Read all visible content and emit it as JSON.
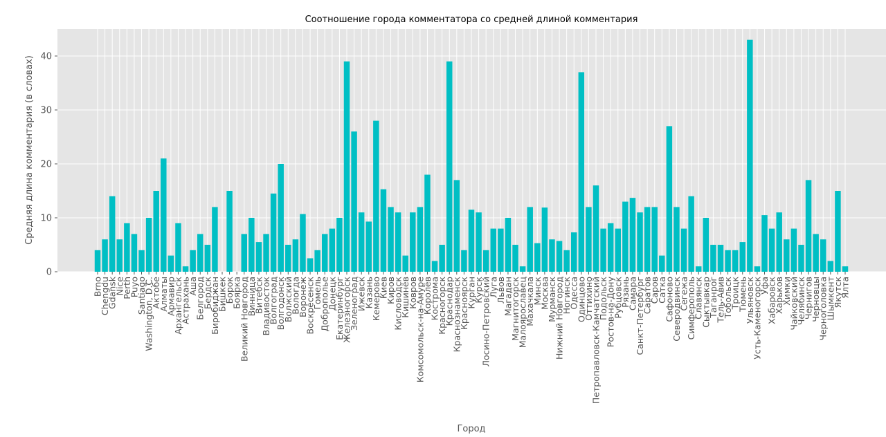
{
  "chart_data": {
    "type": "bar",
    "title": "Соотношение города комментатора со средней длиной комментария",
    "xlabel": "Город",
    "ylabel": "Средняя длина комментария (в словах)",
    "ylim": [
      0,
      45
    ],
    "yticks": [
      0,
      10,
      20,
      30,
      40
    ],
    "grid": true,
    "bar_color": "#00bfc4",
    "background_color": "#e5e5e5",
    "grid_color": "#ffffff",
    "categories": [
      "Brno",
      "Chengdu",
      "Gdansk",
      "Nice",
      "Perth",
      "Puyo",
      "Santiago",
      "Washington, D.C.",
      "Актобе",
      "Алматы",
      "Армавир",
      "Архангельск",
      "Астрахань",
      "Аша",
      "Белгород",
      "Бердск",
      "Биробиджан",
      "Бишкек",
      "Борок",
      "Боярка",
      "Великий Новгород",
      "Винница",
      "Витебск",
      "Владивосток",
      "Волгоград",
      "Волгодонск",
      "Волжский",
      "Вологда",
      "Воронеж",
      "Воскресенск",
      "Гомель",
      "Доброполье",
      "Донецк",
      "Екатеринбург",
      "Железногорск",
      "Зеленоград",
      "Ижевск",
      "Казань",
      "Кемерово",
      "Киев",
      "Киров",
      "Кисловодск",
      "Кишинёв",
      "Ковров",
      "Комсомольск-на-Амуре",
      "Королёв",
      "Кострома",
      "Красногорск",
      "Краснодар",
      "Краснознаменск",
      "Красноярск",
      "Курган",
      "Курск",
      "Лосино-Петровский",
      "Луга",
      "Львов",
      "Магадан",
      "Магнитогорск",
      "Малоярославец",
      "Махачкала",
      "Минск",
      "Москва",
      "Мурманск",
      "Нижний Новгород",
      "Ногинск",
      "Одесса",
      "Одинцово",
      "Оттихино",
      "Петропавловск-Камчатский",
      "Подольск",
      "Ростов-на-Дону",
      "Рубцовск",
      "Рязань",
      "Самара",
      "Санкт-Петербург",
      "Саратов",
      "Саров",
      "Сатка",
      "Сафоново",
      "Северодвинск",
      "Сегежа",
      "Симферополь",
      "Славянск",
      "Сыктывкар",
      "Таганрог",
      "Тель-Авив",
      "Тобольск",
      "Троицк",
      "Тюмень",
      "Ульяновск",
      "Усть-Каменогорск",
      "Уфа",
      "Хабаровск",
      "Харьков",
      "Химки",
      "Чайковский",
      "Челябинск",
      "Чернигов",
      "Черновцы",
      "Черноголовка",
      "Шымкент",
      "Якутск",
      "Ялта"
    ],
    "values": [
      4,
      6,
      14,
      6,
      9,
      7,
      4,
      10,
      15,
      21,
      3,
      9,
      1,
      4,
      7,
      5,
      12,
      0,
      15,
      0,
      7,
      10,
      5.5,
      7,
      14.5,
      20,
      5,
      6,
      10.7,
      2.5,
      4,
      7,
      8,
      10,
      39,
      26,
      11,
      9.3,
      28,
      15.3,
      12,
      11,
      3,
      11,
      12,
      18,
      2,
      5,
      39,
      17,
      4,
      11.5,
      11,
      4,
      8,
      8,
      10,
      5,
      1,
      12,
      5.3,
      11.9,
      6,
      5.7,
      4,
      7.3,
      37,
      12,
      16,
      8,
      9,
      8,
      13,
      13.7,
      11,
      12,
      12,
      3,
      27,
      12,
      8,
      14,
      1,
      10,
      5,
      5,
      4,
      4,
      5.5,
      43,
      1,
      10.5,
      8,
      11,
      6,
      8,
      5,
      17,
      7,
      6,
      2,
      15,
      1
    ]
  }
}
